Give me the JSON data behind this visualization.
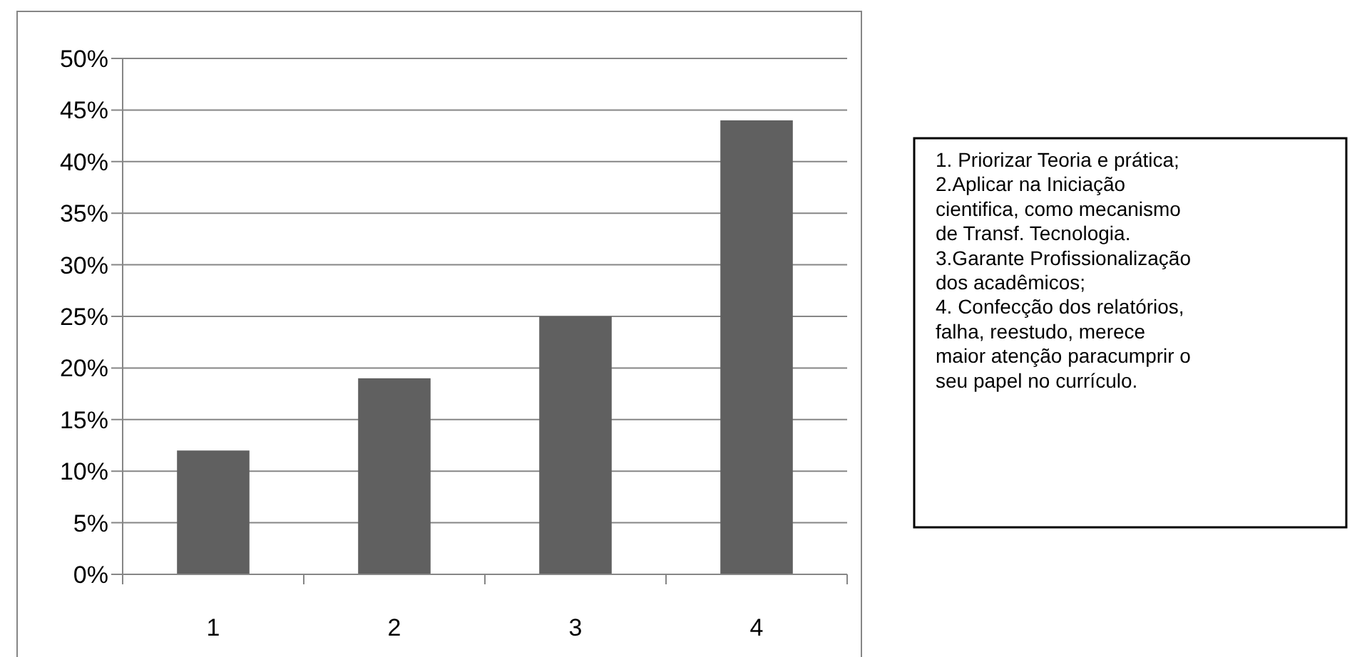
{
  "chart_data": {
    "type": "bar",
    "categories": [
      "1",
      "2",
      "3",
      "4"
    ],
    "values": [
      12,
      19,
      25,
      44
    ],
    "color": "#606060",
    "ylim": [
      0,
      50
    ],
    "yticks": [
      {
        "value": 0,
        "label": "0%"
      },
      {
        "value": 5,
        "label": "5%"
      },
      {
        "value": 10,
        "label": "10%"
      },
      {
        "value": 15,
        "label": "15%"
      },
      {
        "value": 20,
        "label": "20%"
      },
      {
        "value": 25,
        "label": "25%"
      },
      {
        "value": 30,
        "label": "30%"
      },
      {
        "value": 35,
        "label": "35%"
      },
      {
        "value": 40,
        "label": "40%"
      },
      {
        "value": 45,
        "label": "45%"
      },
      {
        "value": 50,
        "label": "50%"
      }
    ],
    "grid": "y",
    "annotations": [
      "1. Priorizar Teoria e prática;",
      "2.Aplicar na Iniciação",
      "cientifica, como mecanismo",
      "de Transf. Tecnologia.",
      "3.Garante Profissionalização",
      "dos acadêmicos;",
      "4. Confecção dos relatórios,",
      "falha, reestudo, merece",
      "maior atenção paracumprir o",
      "seu papel no currículo."
    ]
  }
}
